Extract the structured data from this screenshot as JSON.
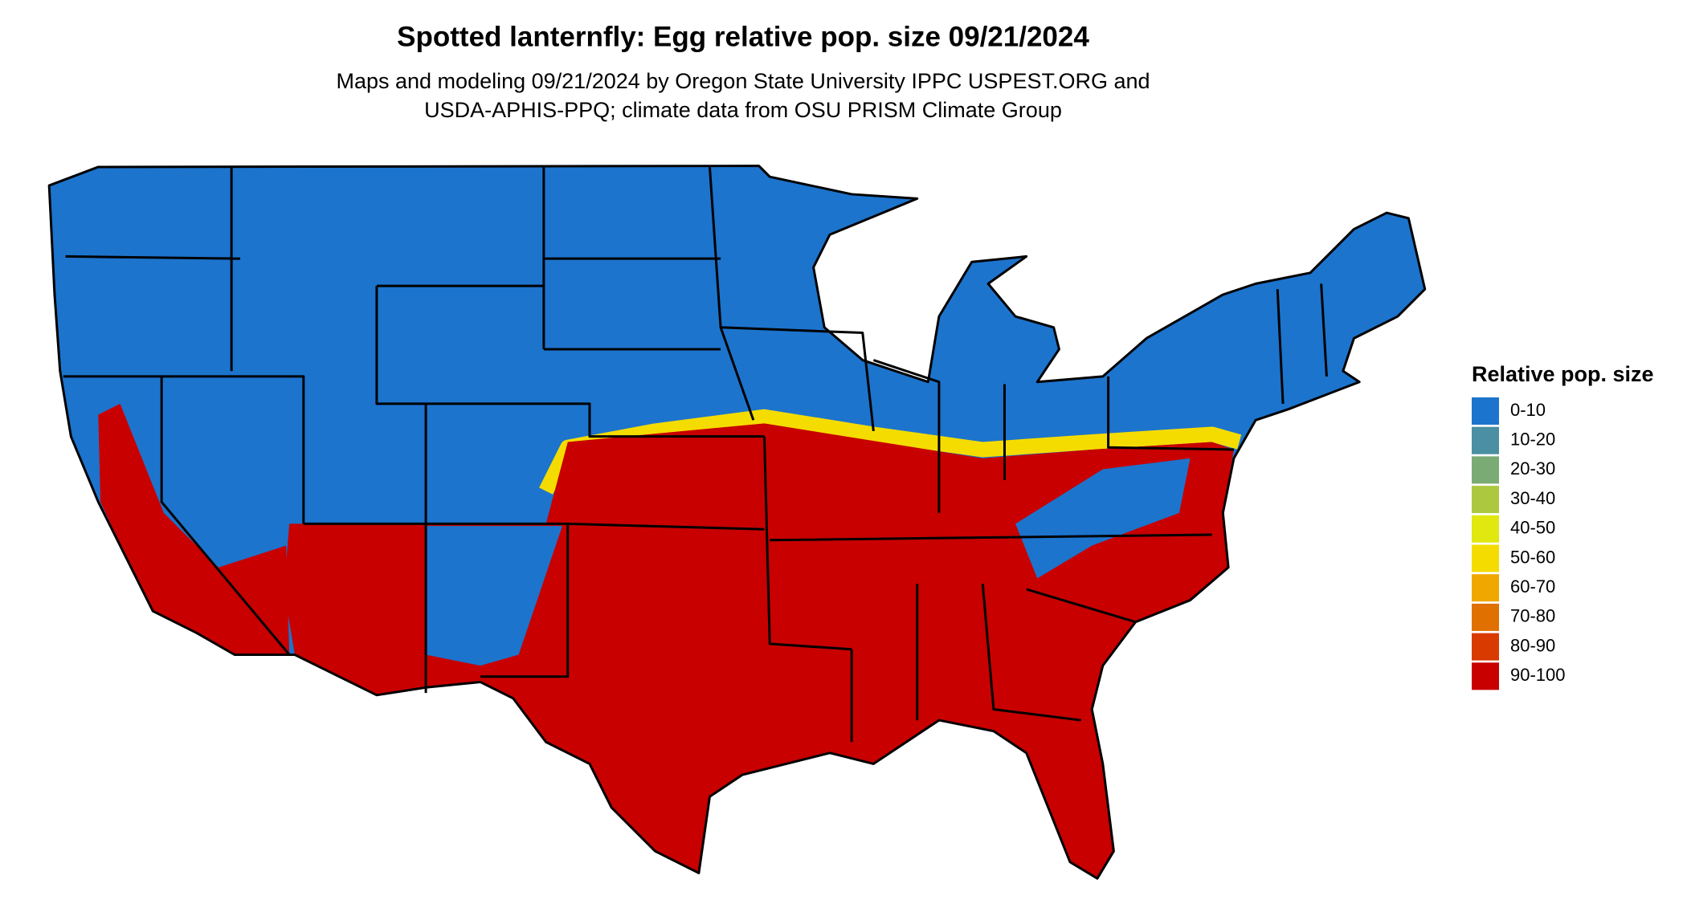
{
  "title": "Spotted lanternfly: Egg relative pop. size 09/21/2024",
  "subtitle": [
    "Maps and modeling 09/21/2024 by Oregon State University IPPC USPEST.ORG and",
    "USDA-APHIS-PPQ; climate data from OSU PRISM Climate Group"
  ],
  "legend": {
    "title": "Relative pop. size",
    "items": [
      {
        "label": "0-10",
        "color": "#1c74cd"
      },
      {
        "label": "10-20",
        "color": "#4a8fa3"
      },
      {
        "label": "20-30",
        "color": "#7aab74"
      },
      {
        "label": "30-40",
        "color": "#acc83f"
      },
      {
        "label": "40-50",
        "color": "#e0e810"
      },
      {
        "label": "50-60",
        "color": "#f5dc00"
      },
      {
        "label": "60-70",
        "color": "#f0a800"
      },
      {
        "label": "70-80",
        "color": "#e07000"
      },
      {
        "label": "80-90",
        "color": "#d83a00"
      },
      {
        "label": "90-100",
        "color": "#c80000"
      }
    ]
  }
}
